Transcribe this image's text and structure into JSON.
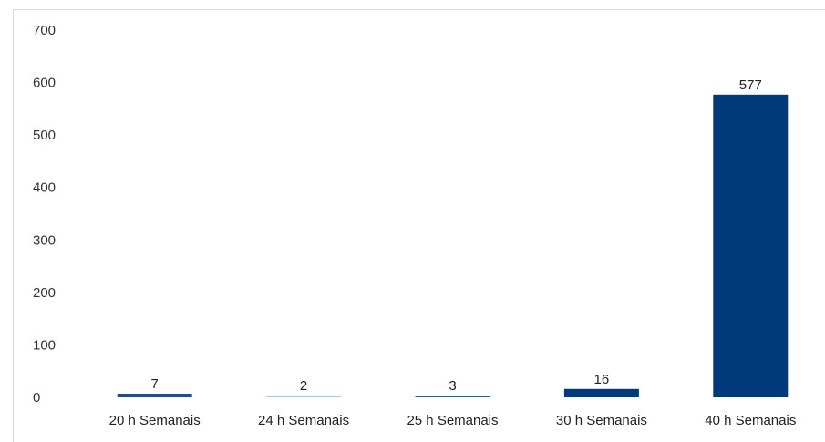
{
  "chart_data": {
    "type": "bar",
    "title": "",
    "xlabel": "",
    "ylabel": "",
    "categories": [
      "20 h Semanais",
      "24 h Semanais",
      "25 h Semanais",
      "30 h Semanais",
      "40 h Semanais"
    ],
    "values": [
      7,
      2,
      3,
      16,
      577
    ],
    "data_labels": [
      "7",
      "2",
      "3",
      "16",
      "577"
    ],
    "bar_colors": [
      "#1f4e8c",
      "#a9c4e4",
      "#2e5c99",
      "#003a7a",
      "#003a7a"
    ],
    "ylim": [
      0,
      700
    ],
    "yticks": [
      0,
      100,
      200,
      300,
      400,
      500,
      600,
      700
    ],
    "ytick_labels": [
      "0",
      "100",
      "200",
      "300",
      "400",
      "500",
      "600",
      "700"
    ],
    "grid": false,
    "legend": "none"
  }
}
